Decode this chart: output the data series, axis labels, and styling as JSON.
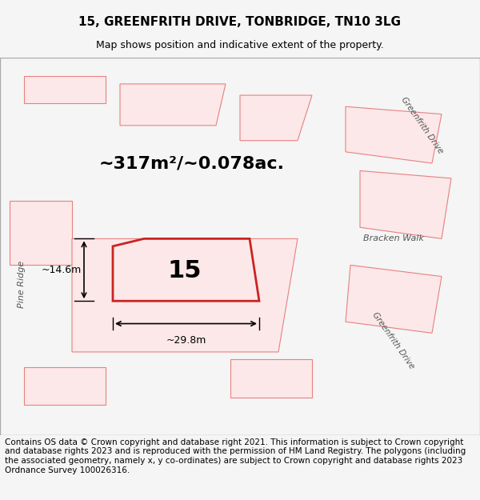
{
  "title": "15, GREENFRITH DRIVE, TONBRIDGE, TN10 3LG",
  "subtitle": "Map shows position and indicative extent of the property.",
  "footer": "Contains OS data © Crown copyright and database right 2021. This information is subject to Crown copyright and database rights 2023 and is reproduced with the permission of HM Land Registry. The polygons (including the associated geometry, namely x, y co-ordinates) are subject to Crown copyright and database rights 2023 Ordnance Survey 100026316.",
  "area_text": "~317m²/~0.078ac.",
  "number_label": "15",
  "dim1_label": "~14.6m",
  "dim2_label": "~29.8m",
  "background_color": "#f5f5f5",
  "map_background": "#ffffff",
  "main_polygon_color": "#cc3333",
  "surrounding_polygon_color": "#f5a0a0",
  "road_label_1": "Pine Ridge",
  "road_label_2a": "Greenfrith Drive",
  "road_label_2b": "Greenfrith Drive",
  "road_label_3": "Bracken Walk",
  "title_fontsize": 11,
  "subtitle_fontsize": 9,
  "footer_fontsize": 7.5
}
